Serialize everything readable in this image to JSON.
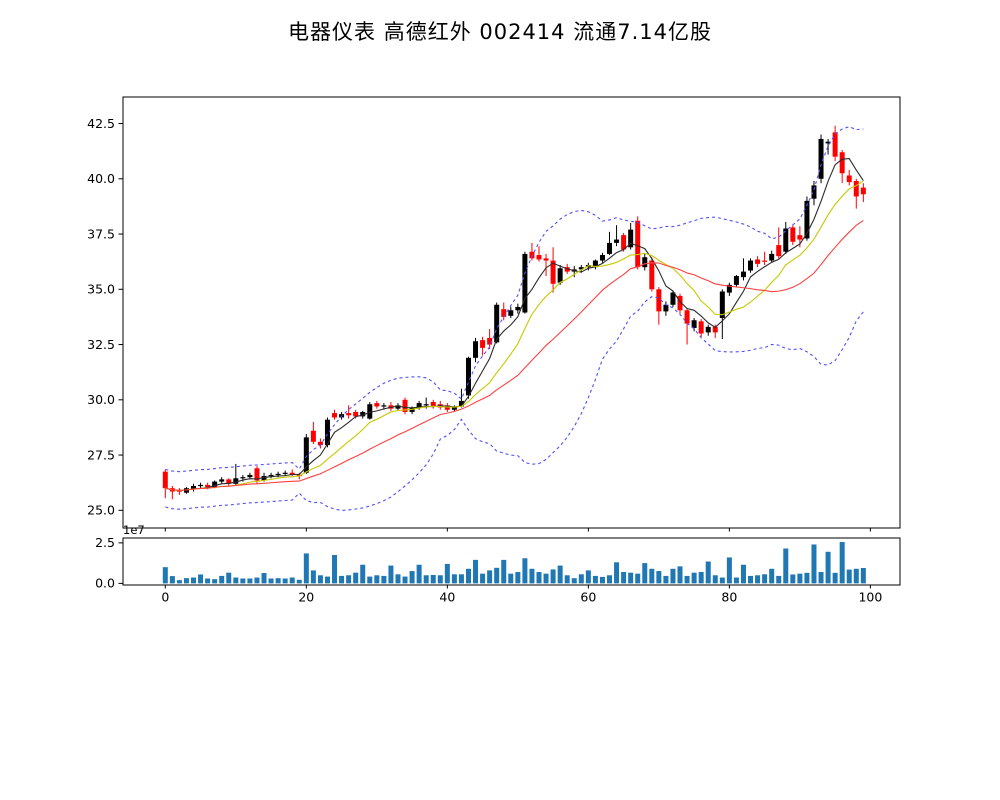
{
  "title": "电器仪表  高德红外  002414  流通7.14亿股",
  "chart_data": {
    "type": "candlestick",
    "title": "电器仪表  高德红外  002414  流通7.14亿股",
    "legend_position": "none",
    "grid": false,
    "x_axis": {
      "xlim": [
        -6,
        104.2
      ],
      "tick_values": [
        0,
        20,
        40,
        60,
        80,
        100
      ],
      "tick_labels": [
        "0",
        "20",
        "40",
        "60",
        "80",
        "100"
      ]
    },
    "price_axis": {
      "ylim": [
        24.2,
        43.7
      ],
      "tick_values": [
        25.0,
        27.5,
        30.0,
        32.5,
        35.0,
        37.5,
        40.0,
        42.5
      ],
      "tick_labels": [
        "25.0",
        "27.5",
        "30.0",
        "32.5",
        "35.0",
        "37.5",
        "40.0",
        "42.5"
      ]
    },
    "volume_axis": {
      "ylim": [
        -1000000,
        28000000
      ],
      "tick_values": [
        0,
        25000000
      ],
      "tick_labels": [
        "0.0",
        "2.5"
      ],
      "offset_label": "1e7"
    },
    "candles": {
      "up_color": "#000000",
      "down_color": "#ff0000",
      "ohlc": [
        [
          26.75,
          26.85,
          25.55,
          26.0
        ],
        [
          26.0,
          26.1,
          25.5,
          25.85
        ],
        [
          25.9,
          26.0,
          25.7,
          25.85
        ],
        [
          25.8,
          26.05,
          25.75,
          26.0
        ],
        [
          25.95,
          26.2,
          25.85,
          26.1
        ],
        [
          26.1,
          26.25,
          26.0,
          26.15
        ],
        [
          26.15,
          26.25,
          25.95,
          26.05
        ],
        [
          26.05,
          26.35,
          26.0,
          26.3
        ],
        [
          26.3,
          26.5,
          26.2,
          26.4
        ],
        [
          26.4,
          26.45,
          26.1,
          26.2
        ],
        [
          26.2,
          27.1,
          26.15,
          26.45
        ],
        [
          26.45,
          26.6,
          26.3,
          26.5
        ],
        [
          26.5,
          26.7,
          26.4,
          26.6
        ],
        [
          26.9,
          27.0,
          26.2,
          26.35
        ],
        [
          26.35,
          26.7,
          26.3,
          26.55
        ],
        [
          26.55,
          26.7,
          26.45,
          26.6
        ],
        [
          26.6,
          26.75,
          26.5,
          26.65
        ],
        [
          26.65,
          26.8,
          26.55,
          26.7
        ],
        [
          26.7,
          26.85,
          26.5,
          26.6
        ],
        [
          26.6,
          26.7,
          26.4,
          26.55
        ],
        [
          26.7,
          28.45,
          26.65,
          28.3
        ],
        [
          28.6,
          29.0,
          28.0,
          28.1
        ],
        [
          28.1,
          28.25,
          27.8,
          27.95
        ],
        [
          27.95,
          29.2,
          27.85,
          29.1
        ],
        [
          29.4,
          29.55,
          29.1,
          29.2
        ],
        [
          29.2,
          29.45,
          29.1,
          29.35
        ],
        [
          29.4,
          29.75,
          29.15,
          29.3
        ],
        [
          29.45,
          29.55,
          29.15,
          29.25
        ],
        [
          29.25,
          29.5,
          29.15,
          29.45
        ],
        [
          29.15,
          29.9,
          29.1,
          29.8
        ],
        [
          29.85,
          29.95,
          29.6,
          29.7
        ],
        [
          29.7,
          29.85,
          29.55,
          29.75
        ],
        [
          29.75,
          29.9,
          29.5,
          29.6
        ],
        [
          29.6,
          29.85,
          29.5,
          29.75
        ],
        [
          30.0,
          30.1,
          29.35,
          29.45
        ],
        [
          29.45,
          29.7,
          29.35,
          29.65
        ],
        [
          29.65,
          29.95,
          29.55,
          29.85
        ],
        [
          29.8,
          30.1,
          29.6,
          29.8
        ],
        [
          29.9,
          30.0,
          29.6,
          29.7
        ],
        [
          29.8,
          29.95,
          29.55,
          29.65
        ],
        [
          29.75,
          29.85,
          29.45,
          29.55
        ],
        [
          29.55,
          29.75,
          29.45,
          29.7
        ],
        [
          29.7,
          30.5,
          29.65,
          29.95
        ],
        [
          30.2,
          31.95,
          30.05,
          31.9
        ],
        [
          31.9,
          32.8,
          31.7,
          32.65
        ],
        [
          32.7,
          32.85,
          32.0,
          32.35
        ],
        [
          32.8,
          33.2,
          32.3,
          32.5
        ],
        [
          32.6,
          34.4,
          32.55,
          34.3
        ],
        [
          34.1,
          34.4,
          33.6,
          33.75
        ],
        [
          33.8,
          34.2,
          33.7,
          34.05
        ],
        [
          34.05,
          34.35,
          33.9,
          34.2
        ],
        [
          33.95,
          36.7,
          33.9,
          36.6
        ],
        [
          36.7,
          37.1,
          36.3,
          36.4
        ],
        [
          36.55,
          36.95,
          36.25,
          36.35
        ],
        [
          36.4,
          36.6,
          35.6,
          36.3
        ],
        [
          36.3,
          36.9,
          34.85,
          35.25
        ],
        [
          35.3,
          36.1,
          35.2,
          35.95
        ],
        [
          36.0,
          36.15,
          35.7,
          35.8
        ],
        [
          35.8,
          36.05,
          35.55,
          35.9
        ],
        [
          35.9,
          36.1,
          35.75,
          36.0
        ],
        [
          36.0,
          36.2,
          35.85,
          36.1
        ],
        [
          36.0,
          36.35,
          35.9,
          36.3
        ],
        [
          36.3,
          36.65,
          36.2,
          36.55
        ],
        [
          36.6,
          37.6,
          36.55,
          37.1
        ],
        [
          37.1,
          37.9,
          36.95,
          37.25
        ],
        [
          37.45,
          37.55,
          36.7,
          36.8
        ],
        [
          36.9,
          38.0,
          36.8,
          37.7
        ],
        [
          38.1,
          38.3,
          35.9,
          36.0
        ],
        [
          36.0,
          36.6,
          35.85,
          36.45
        ],
        [
          36.3,
          36.45,
          34.9,
          35.0
        ],
        [
          35.0,
          35.1,
          33.4,
          34.0
        ],
        [
          34.0,
          34.45,
          33.8,
          34.3
        ],
        [
          34.3,
          34.95,
          34.2,
          34.85
        ],
        [
          34.7,
          34.8,
          33.9,
          34.05
        ],
        [
          34.05,
          34.15,
          32.5,
          33.45
        ],
        [
          33.25,
          33.7,
          33.1,
          33.6
        ],
        [
          33.55,
          33.65,
          32.85,
          33.0
        ],
        [
          33.05,
          33.4,
          32.9,
          33.3
        ],
        [
          33.3,
          33.4,
          32.8,
          33.05
        ],
        [
          33.7,
          35.0,
          32.75,
          34.9
        ],
        [
          34.85,
          35.3,
          34.7,
          35.2
        ],
        [
          35.2,
          35.65,
          35.1,
          35.6
        ],
        [
          35.55,
          36.4,
          35.4,
          35.8
        ],
        [
          35.85,
          36.4,
          35.75,
          36.3
        ],
        [
          36.35,
          36.5,
          36.0,
          36.15
        ],
        [
          36.3,
          36.7,
          36.1,
          36.25
        ],
        [
          36.3,
          36.75,
          36.2,
          36.6
        ],
        [
          37.0,
          37.8,
          36.4,
          36.5
        ],
        [
          36.7,
          38.05,
          36.6,
          37.75
        ],
        [
          37.8,
          37.9,
          37.0,
          37.15
        ],
        [
          37.45,
          37.85,
          36.9,
          37.25
        ],
        [
          37.3,
          39.2,
          37.2,
          39.0
        ],
        [
          39.1,
          39.9,
          38.8,
          39.7
        ],
        [
          40.0,
          42.0,
          39.8,
          41.8
        ],
        [
          41.6,
          41.8,
          41.1,
          41.68
        ],
        [
          42.1,
          42.4,
          40.8,
          41.0
        ],
        [
          41.2,
          41.3,
          39.8,
          40.25
        ],
        [
          40.15,
          40.4,
          39.7,
          39.85
        ],
        [
          39.9,
          40.0,
          38.65,
          39.2
        ],
        [
          39.6,
          39.8,
          38.95,
          39.3
        ]
      ]
    },
    "volume": {
      "color": "#1f77b4",
      "values": [
        10000000,
        4500000,
        2000000,
        3200000,
        3600000,
        5500000,
        3000000,
        2600000,
        4600000,
        6600000,
        3600000,
        3000000,
        3000000,
        3600000,
        6400000,
        3000000,
        3200000,
        3000000,
        3600000,
        2200000,
        18500000,
        8000000,
        5000000,
        4200000,
        17500000,
        4600000,
        5000000,
        6600000,
        11500000,
        4200000,
        5000000,
        4600000,
        11000000,
        5600000,
        4200000,
        7600000,
        11500000,
        5000000,
        5200000,
        5000000,
        12000000,
        5600000,
        5600000,
        9000000,
        14500000,
        6000000,
        8000000,
        9600000,
        14500000,
        6000000,
        7000000,
        15500000,
        9000000,
        7000000,
        6000000,
        8600000,
        11000000,
        5000000,
        3200000,
        5600000,
        8000000,
        4600000,
        4000000,
        5000000,
        13000000,
        7000000,
        6600000,
        6000000,
        12500000,
        9000000,
        7600000,
        4600000,
        9000000,
        10500000,
        4600000,
        6600000,
        7000000,
        13500000,
        5000000,
        3600000,
        16000000,
        3600000,
        11500000,
        4600000,
        5000000,
        5600000,
        9000000,
        4600000,
        21500000,
        5500000,
        6000000,
        6500000,
        24000000,
        7000000,
        19500000,
        6500000,
        25500000,
        8500000,
        9000000,
        9500000
      ]
    },
    "overlays": [
      {
        "name": "ma-fast",
        "kind": "sma",
        "window": 5,
        "color": "#2b2b2b",
        "style": "solid"
      },
      {
        "name": "ma-mid",
        "kind": "sma",
        "window": 10,
        "color": "#c8c800",
        "style": "solid"
      },
      {
        "name": "ma-slow",
        "kind": "sma",
        "window": 20,
        "color": "#ff4040",
        "style": "solid"
      },
      {
        "name": "bollinger-bands",
        "kind": "bollinger",
        "window": 20,
        "mult": 2,
        "color": "#5050ff",
        "style": "dashed"
      }
    ]
  }
}
